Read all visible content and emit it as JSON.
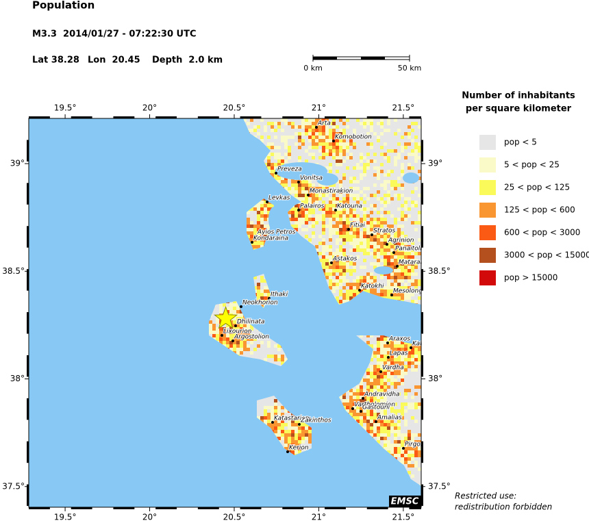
{
  "header": {
    "title": "Population",
    "event": "M3.3  2014/01/27 - 07:22:30 UTC",
    "lat": {
      "value": 38.28,
      "label": "Lat 38.28"
    },
    "lon": {
      "value": 20.45,
      "label": "Lon  20.45"
    },
    "depth": "Depth  2.0 km"
  },
  "scale_bar": {
    "start": "0 km",
    "end": "50 km"
  },
  "map": {
    "lon_ticks": [
      {
        "value": 19.5,
        "label": "19.5°"
      },
      {
        "value": 20,
        "label": "20°"
      },
      {
        "value": 20.5,
        "label": "20.5°"
      },
      {
        "value": 21,
        "label": "21°"
      },
      {
        "value": 21.5,
        "label": "21.5°"
      }
    ],
    "lat_ticks": [
      {
        "value": 39,
        "label": "39°"
      },
      {
        "value": 38.5,
        "label": "38.5°"
      },
      {
        "value": 38,
        "label": "38°"
      },
      {
        "value": 37.5,
        "label": "37.5°"
      }
    ],
    "places": [
      "Arta",
      "Komobotion",
      "Preveza",
      "Vonitsa",
      "Monastirakion",
      "Levkas",
      "Palairos",
      "Katouna",
      "Fitiai",
      "Stratos",
      "Ayios Petros",
      "Kondaraina",
      "Agrinion",
      "Panaitolion",
      "Mataranga",
      "Astakos",
      "Katokhi",
      "Mesolongion",
      "Ithaki",
      "Neokhorion",
      "Dhilinata",
      "Lixourion",
      "Argostolion",
      "Araxos",
      "Kato Akhaia",
      "Lapas",
      "Vardha",
      "Andravidha",
      "Vartholomion",
      "Gastouni",
      "Amalias",
      "Katastarion",
      "Zakinthos",
      "Pirgos",
      "Kerion"
    ],
    "watermark": "EMSC"
  },
  "legend": {
    "title": [
      "Number of inhabitants",
      "per square kilometer"
    ],
    "items": [
      {
        "label": "pop < 5",
        "color": "#e6e6e6"
      },
      {
        "label": "5 < pop < 25",
        "color": "#fafac8"
      },
      {
        "label": "25 < pop < 125",
        "color": "#fafa5a"
      },
      {
        "label": "125 < pop < 600",
        "color": "#fa9632"
      },
      {
        "label": "600 < pop < 3000",
        "color": "#fa5a14"
      },
      {
        "label": "3000 < pop < 15000",
        "color": "#b4501e"
      },
      {
        "label": "pop > 15000",
        "color": "#d20a0a"
      }
    ]
  },
  "notice": [
    "Restricted use:",
    "redistribution forbidden"
  ]
}
